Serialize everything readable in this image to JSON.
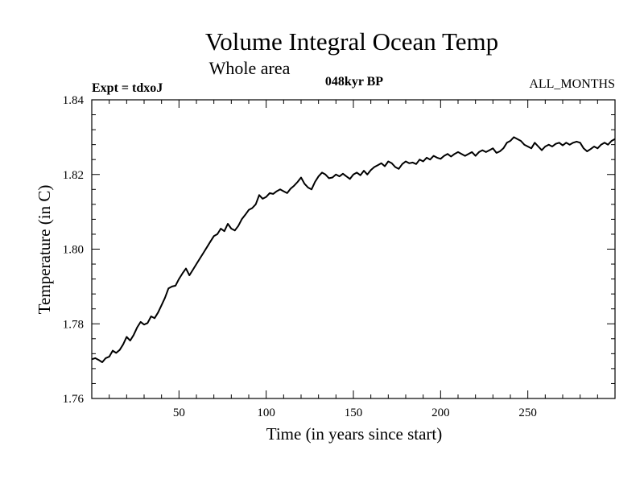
{
  "chart_data": {
    "type": "line",
    "title": "Volume Integral Ocean Temp",
    "subtitle": "Whole area",
    "experiment_label": "Expt = tdxoJ",
    "period_label": "048kyr BP",
    "months_label": "ALL_MONTHS",
    "xlabel": "Time (in years since start)",
    "ylabel": "Temperature (in C)",
    "xlim": [
      0,
      300
    ],
    "ylim": [
      1.76,
      1.84
    ],
    "x_ticks": [
      50,
      100,
      150,
      200,
      250
    ],
    "y_ticks": [
      1.76,
      1.78,
      1.8,
      1.82,
      1.84
    ],
    "x_tick_labels": [
      "50",
      "100",
      "150",
      "200",
      "250"
    ],
    "y_tick_labels": [
      "1.76",
      "1.78",
      "1.80",
      "1.82",
      "1.84"
    ],
    "grid": false,
    "series": [
      {
        "color": "#000000",
        "x": [
          0,
          2,
          4,
          6,
          8,
          10,
          12,
          14,
          16,
          18,
          20,
          22,
          24,
          26,
          28,
          30,
          32,
          34,
          36,
          38,
          40,
          42,
          44,
          46,
          48,
          50,
          52,
          54,
          56,
          58,
          60,
          62,
          64,
          66,
          68,
          70,
          72,
          74,
          76,
          78,
          80,
          82,
          84,
          86,
          88,
          90,
          92,
          94,
          96,
          98,
          100,
          102,
          104,
          106,
          108,
          110,
          112,
          114,
          116,
          118,
          120,
          122,
          124,
          126,
          128,
          130,
          132,
          134,
          136,
          138,
          140,
          142,
          144,
          146,
          148,
          150,
          152,
          154,
          156,
          158,
          160,
          162,
          164,
          166,
          168,
          170,
          172,
          174,
          176,
          178,
          180,
          182,
          184,
          186,
          188,
          190,
          192,
          194,
          196,
          198,
          200,
          202,
          204,
          206,
          208,
          210,
          212,
          214,
          216,
          218,
          220,
          222,
          224,
          226,
          228,
          230,
          232,
          234,
          236,
          238,
          240,
          242,
          244,
          246,
          248,
          250,
          252,
          254,
          256,
          258,
          260,
          262,
          264,
          266,
          268,
          270,
          272,
          274,
          276,
          278,
          280,
          282,
          284,
          286,
          288,
          290,
          292,
          294,
          296,
          298,
          300
        ],
        "values": [
          1.7705,
          1.7708,
          1.7703,
          1.7697,
          1.7708,
          1.7712,
          1.7728,
          1.7722,
          1.773,
          1.7745,
          1.7765,
          1.7755,
          1.777,
          1.779,
          1.7805,
          1.7798,
          1.7802,
          1.782,
          1.7815,
          1.783,
          1.785,
          1.787,
          1.7895,
          1.79,
          1.7902,
          1.792,
          1.7935,
          1.7948,
          1.793,
          1.7945,
          1.796,
          1.7975,
          1.799,
          1.8005,
          1.802,
          1.8035,
          1.804,
          1.8055,
          1.8048,
          1.8068,
          1.8055,
          1.805,
          1.8062,
          1.808,
          1.8092,
          1.8105,
          1.811,
          1.812,
          1.8145,
          1.8135,
          1.814,
          1.815,
          1.8148,
          1.8155,
          1.816,
          1.8155,
          1.815,
          1.8162,
          1.817,
          1.818,
          1.8192,
          1.8175,
          1.8165,
          1.816,
          1.818,
          1.8195,
          1.8205,
          1.82,
          1.819,
          1.8192,
          1.82,
          1.8195,
          1.8202,
          1.8195,
          1.8188,
          1.82,
          1.8205,
          1.8198,
          1.821,
          1.82,
          1.8212,
          1.822,
          1.8225,
          1.823,
          1.8222,
          1.8235,
          1.823,
          1.822,
          1.8215,
          1.8228,
          1.8235,
          1.823,
          1.8232,
          1.8228,
          1.824,
          1.8235,
          1.8245,
          1.824,
          1.825,
          1.8245,
          1.8242,
          1.825,
          1.8255,
          1.8248,
          1.8255,
          1.826,
          1.8255,
          1.825,
          1.8255,
          1.826,
          1.825,
          1.826,
          1.8265,
          1.826,
          1.8265,
          1.827,
          1.8258,
          1.8262,
          1.827,
          1.8285,
          1.829,
          1.83,
          1.8295,
          1.829,
          1.828,
          1.8275,
          1.827,
          1.8285,
          1.8275,
          1.8265,
          1.8275,
          1.828,
          1.8275,
          1.8282,
          1.8285,
          1.8278,
          1.8285,
          1.828,
          1.8285,
          1.8288,
          1.8285,
          1.827,
          1.8262,
          1.8268,
          1.8275,
          1.827,
          1.828,
          1.8285,
          1.828,
          1.829,
          1.8295
        ]
      }
    ]
  }
}
